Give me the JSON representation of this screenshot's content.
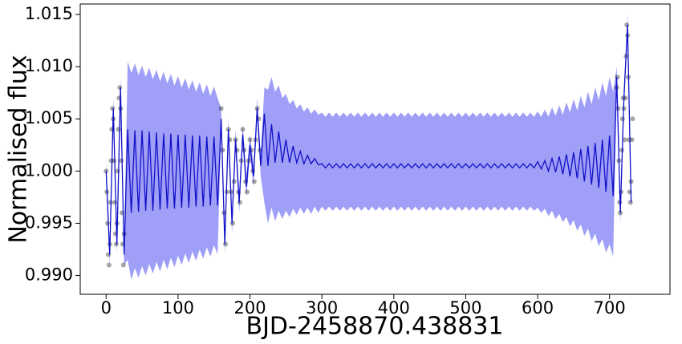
{
  "chart_data": {
    "type": "line",
    "xlabel": "BJD-2458870.438831",
    "ylabel": "Normalised flux",
    "xlim": [
      -36,
      784
    ],
    "ylim": [
      0.9882,
      1.016
    ],
    "xticks": [
      0,
      100,
      200,
      300,
      400,
      500,
      600,
      700
    ],
    "yticks": [
      {
        "value": 0.99,
        "label": "0.990"
      },
      0.995,
      {
        "value": 1.0,
        "label": "1.000"
      },
      1.005,
      {
        "value": 1.01,
        "label": "1.010"
      },
      1.015
    ],
    "color": "#1010c8",
    "band_color": "#9a9af7",
    "x": [
      0,
      5,
      10,
      15,
      20,
      25,
      30,
      35,
      40,
      45,
      50,
      55,
      60,
      65,
      70,
      75,
      80,
      85,
      90,
      95,
      100,
      105,
      110,
      115,
      120,
      125,
      130,
      135,
      140,
      145,
      150,
      155,
      160,
      165,
      170,
      175,
      180,
      185,
      190,
      195,
      200,
      205,
      210,
      215,
      220,
      225,
      230,
      235,
      240,
      245,
      250,
      255,
      260,
      265,
      270,
      275,
      280,
      285,
      290,
      295,
      300,
      305,
      310,
      315,
      320,
      325,
      330,
      335,
      340,
      345,
      350,
      355,
      360,
      365,
      370,
      375,
      380,
      385,
      390,
      395,
      400,
      405,
      410,
      415,
      420,
      425,
      430,
      435,
      440,
      445,
      450,
      455,
      460,
      465,
      470,
      475,
      480,
      485,
      490,
      495,
      500,
      505,
      510,
      515,
      520,
      525,
      530,
      535,
      540,
      545,
      550,
      555,
      560,
      565,
      570,
      575,
      580,
      585,
      590,
      595,
      600,
      605,
      610,
      615,
      620,
      625,
      630,
      635,
      640,
      645,
      650,
      655,
      660,
      665,
      670,
      675,
      680,
      685,
      690,
      695,
      700,
      705,
      710,
      715,
      720,
      725,
      730
    ],
    "values": [
      1.0,
      0.992,
      1.006,
      0.993,
      1.008,
      0.992,
      1.004,
      0.996,
      1.0039,
      0.9961,
      1.0039,
      0.9962,
      1.0038,
      0.9962,
      1.0037,
      0.9963,
      1.0036,
      0.9964,
      1.0036,
      0.9964,
      1.0035,
      0.9965,
      1.0035,
      0.9965,
      1.0034,
      0.9966,
      1.0034,
      0.9966,
      1.0033,
      0.9967,
      1.0033,
      0.9967,
      1.005,
      0.993,
      1.004,
      0.995,
      1.003,
      0.997,
      1.0035,
      0.9985,
      1.0025,
      0.9995,
      1.006,
      1.0005,
      1.0055,
      1.0005,
      1.0045,
      1.0008,
      1.0038,
      1.0008,
      1.003,
      1.0008,
      1.0024,
      1.0008,
      1.0019,
      1.0007,
      1.0015,
      1.0007,
      1.0012,
      1.0006,
      1.0007,
      1.0003,
      1.0007,
      1.0003,
      1.0007,
      1.0003,
      1.0007,
      1.0003,
      1.0007,
      1.0003,
      1.0007,
      1.0003,
      1.0007,
      1.0003,
      1.0007,
      1.0003,
      1.0007,
      1.0003,
      1.0007,
      1.0003,
      1.0007,
      1.0003,
      1.0007,
      1.0003,
      1.0007,
      1.0003,
      1.0007,
      1.0003,
      1.0007,
      1.0003,
      1.0007,
      1.0003,
      1.0007,
      1.0003,
      1.0007,
      1.0003,
      1.0007,
      1.0003,
      1.0007,
      1.0003,
      1.0007,
      1.0003,
      1.0007,
      1.0003,
      1.0007,
      1.0003,
      1.0007,
      1.0003,
      1.0007,
      1.0003,
      1.0007,
      1.0003,
      1.0007,
      1.0003,
      1.0007,
      1.0003,
      1.0007,
      1.0003,
      1.0007,
      1.0003,
      1.0009,
      1.0002,
      1.001,
      1.0,
      1.0012,
      0.9999,
      1.0014,
      0.9997,
      1.0016,
      0.9995,
      1.0018,
      0.9993,
      1.0021,
      0.999,
      1.0024,
      0.9987,
      1.0027,
      0.9984,
      1.003,
      0.998,
      1.0034,
      0.9976,
      1.009,
      0.996,
      1.007,
      1.014,
      0.997
    ],
    "band_upper": [
      1.001,
      0.993,
      1.007,
      0.994,
      1.009,
      0.993,
      1.0105,
      1.0094,
      1.0103,
      1.0092,
      1.0101,
      1.009,
      1.0099,
      1.0088,
      1.0097,
      1.0086,
      1.0095,
      1.0084,
      1.0093,
      1.0082,
      1.0091,
      1.008,
      1.0089,
      1.0078,
      1.0087,
      1.0076,
      1.0085,
      1.0074,
      1.0083,
      1.0072,
      1.0081,
      1.007,
      1.006,
      0.994,
      1.005,
      0.996,
      1.004,
      0.998,
      1.0045,
      0.9995,
      1.0035,
      1.0005,
      1.007,
      1.0015,
      1.008,
      1.0078,
      1.009,
      1.0076,
      1.0082,
      1.007,
      1.0074,
      1.0064,
      1.0068,
      1.006,
      1.0064,
      1.0057,
      1.0061,
      1.0055,
      1.0059,
      1.0054,
      1.0056,
      1.0052,
      1.0056,
      1.0052,
      1.0056,
      1.0052,
      1.0056,
      1.0052,
      1.0056,
      1.0052,
      1.0056,
      1.0052,
      1.0056,
      1.0052,
      1.0056,
      1.0052,
      1.0056,
      1.0052,
      1.0056,
      1.0052,
      1.0056,
      1.0052,
      1.0056,
      1.0052,
      1.0056,
      1.0052,
      1.0056,
      1.0052,
      1.0056,
      1.0052,
      1.0056,
      1.0052,
      1.0056,
      1.0052,
      1.0056,
      1.0052,
      1.0056,
      1.0052,
      1.0056,
      1.0052,
      1.0056,
      1.0052,
      1.0056,
      1.0052,
      1.0056,
      1.0052,
      1.0056,
      1.0052,
      1.0056,
      1.0052,
      1.0056,
      1.0052,
      1.0056,
      1.0052,
      1.0056,
      1.0052,
      1.0056,
      1.0052,
      1.0056,
      1.0052,
      1.0057,
      1.0052,
      1.0059,
      1.0052,
      1.0061,
      1.0053,
      1.0063,
      1.0054,
      1.0066,
      1.0056,
      1.0069,
      1.0058,
      1.0072,
      1.0061,
      1.0076,
      1.0064,
      1.008,
      1.0068,
      1.0085,
      1.0072,
      1.009,
      1.0076,
      1.01,
      0.997,
      1.008,
      1.015,
      0.998
    ],
    "band_lower": [
      0.999,
      0.991,
      1.005,
      0.992,
      1.007,
      0.991,
      0.9915,
      0.9896,
      0.9907,
      0.9898,
      0.9909,
      0.99,
      0.9911,
      0.9902,
      0.9913,
      0.9904,
      0.9915,
      0.9906,
      0.9917,
      0.9908,
      0.9919,
      0.991,
      0.9921,
      0.9912,
      0.9923,
      0.9914,
      0.9925,
      0.9916,
      0.9927,
      0.9918,
      0.9929,
      0.992,
      1.004,
      0.992,
      1.003,
      0.994,
      1.002,
      0.996,
      1.0025,
      0.9975,
      1.0015,
      0.9985,
      1.005,
      0.9995,
      0.997,
      0.995,
      0.9965,
      0.9952,
      0.9962,
      0.9954,
      0.9962,
      0.9956,
      0.9964,
      0.9958,
      0.9965,
      0.9959,
      0.9965,
      0.9959,
      0.9966,
      0.996,
      0.9966,
      0.9962,
      0.9966,
      0.9962,
      0.9966,
      0.9962,
      0.9966,
      0.9962,
      0.9966,
      0.9962,
      0.9966,
      0.9962,
      0.9966,
      0.9962,
      0.9966,
      0.9962,
      0.9966,
      0.9962,
      0.9966,
      0.9962,
      0.9966,
      0.9962,
      0.9966,
      0.9962,
      0.9966,
      0.9962,
      0.9966,
      0.9962,
      0.9966,
      0.9962,
      0.9966,
      0.9962,
      0.9966,
      0.9962,
      0.9966,
      0.9962,
      0.9966,
      0.9962,
      0.9966,
      0.9962,
      0.9966,
      0.9962,
      0.9966,
      0.9962,
      0.9966,
      0.9962,
      0.9966,
      0.9962,
      0.9966,
      0.9962,
      0.9966,
      0.9962,
      0.9966,
      0.9962,
      0.9966,
      0.9962,
      0.9966,
      0.9962,
      0.9966,
      0.9962,
      0.9965,
      0.996,
      0.9964,
      0.9957,
      0.9962,
      0.9954,
      0.9959,
      0.9951,
      0.9956,
      0.9947,
      0.9953,
      0.9943,
      0.9949,
      0.9938,
      0.9945,
      0.9933,
      0.994,
      0.9928,
      0.9935,
      0.9922,
      0.993,
      0.9918,
      1.008,
      0.995,
      1.006,
      1.013,
      0.996
    ],
    "points": {
      "color": "#000000",
      "x": [
        0,
        1,
        2,
        3,
        4,
        5,
        6,
        7,
        8,
        9,
        10,
        11,
        12,
        13,
        14,
        15,
        16,
        17,
        18,
        19,
        20,
        21,
        22,
        23,
        24,
        25,
        160,
        162,
        164,
        166,
        168,
        170,
        172,
        174,
        176,
        178,
        180,
        182,
        184,
        186,
        188,
        190,
        192,
        194,
        196,
        198,
        200,
        202,
        204,
        206,
        208,
        210,
        212,
        214,
        710,
        711,
        712,
        713,
        714,
        715,
        716,
        717,
        718,
        719,
        720,
        721,
        722,
        723,
        724,
        725,
        726,
        727,
        728,
        729,
        730,
        731,
        732
      ],
      "y": [
        1.0,
        0.998,
        0.995,
        0.992,
        0.991,
        0.993,
        0.997,
        1.001,
        1.004,
        1.006,
        1.005,
        1.001,
        0.997,
        0.994,
        0.993,
        0.995,
        1.0,
        1.004,
        1.007,
        1.008,
        1.006,
        1.001,
        0.996,
        0.993,
        0.991,
        0.994,
        1.006,
        1.002,
        0.996,
        0.993,
        0.998,
        1.004,
        1.003,
        0.998,
        0.995,
        0.999,
        1.003,
        1.002,
        0.998,
        0.997,
        1.001,
        1.004,
        1.002,
        0.999,
        0.998,
        1.001,
        1.003,
        1.002,
        1.0,
        0.999,
        1.003,
        1.006,
        1.005,
        1.002,
        1.008,
        1.009,
        1.006,
        1.001,
        0.997,
        0.996,
        0.998,
        1.002,
        1.005,
        1.007,
        1.006,
        1.003,
        1.007,
        1.011,
        1.014,
        1.013,
        1.009,
        1.003,
        0.998,
        0.997,
        0.999,
        1.003,
        1.005
      ]
    }
  }
}
